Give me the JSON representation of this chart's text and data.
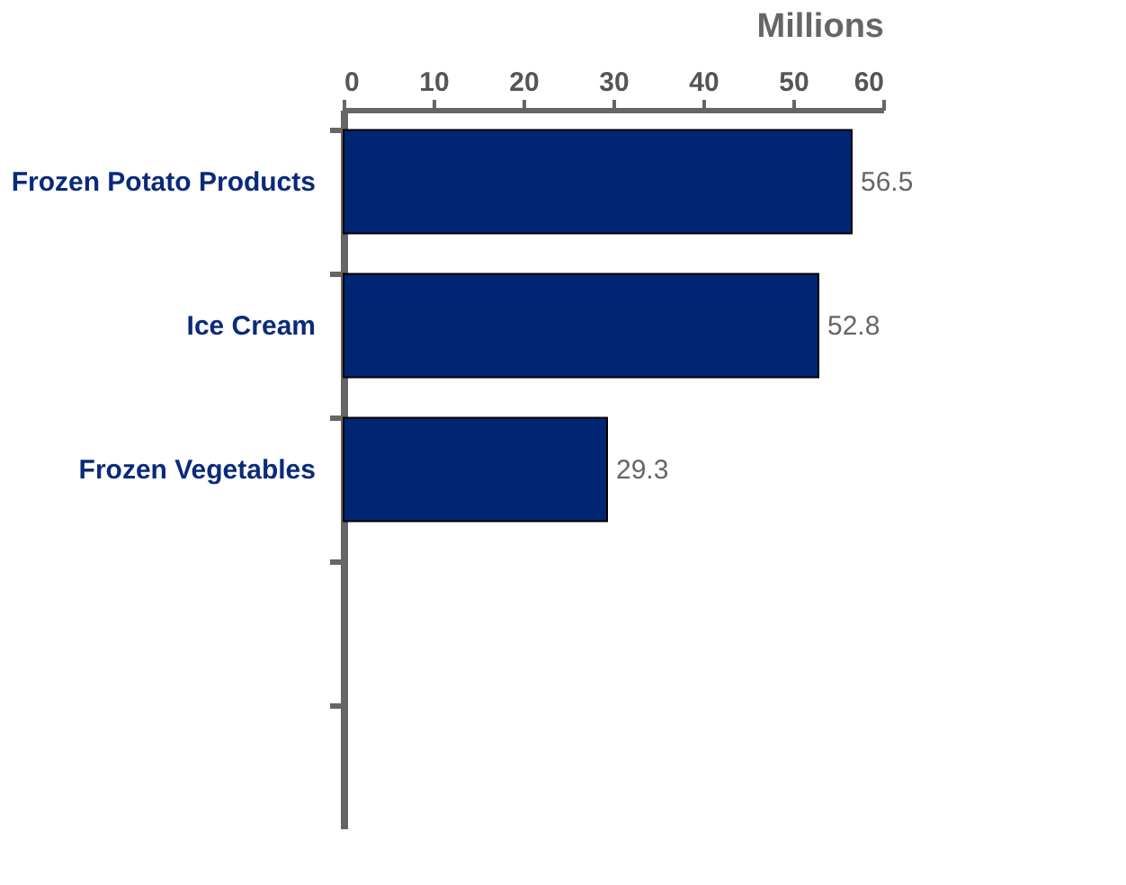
{
  "chart_data": {
    "type": "bar",
    "orientation": "horizontal",
    "xlabel": "Millions",
    "categories": [
      "Frozen Potato Products",
      "Ice Cream",
      "Frozen Vegetables",
      null,
      null
    ],
    "values": [
      56.5,
      52.8,
      29.3,
      null,
      null
    ],
    "color": "#002673",
    "xlim": [
      0,
      60
    ],
    "xticks": [
      0,
      10,
      20,
      30,
      40,
      50,
      60
    ],
    "data_labels": true,
    "grid": false
  }
}
